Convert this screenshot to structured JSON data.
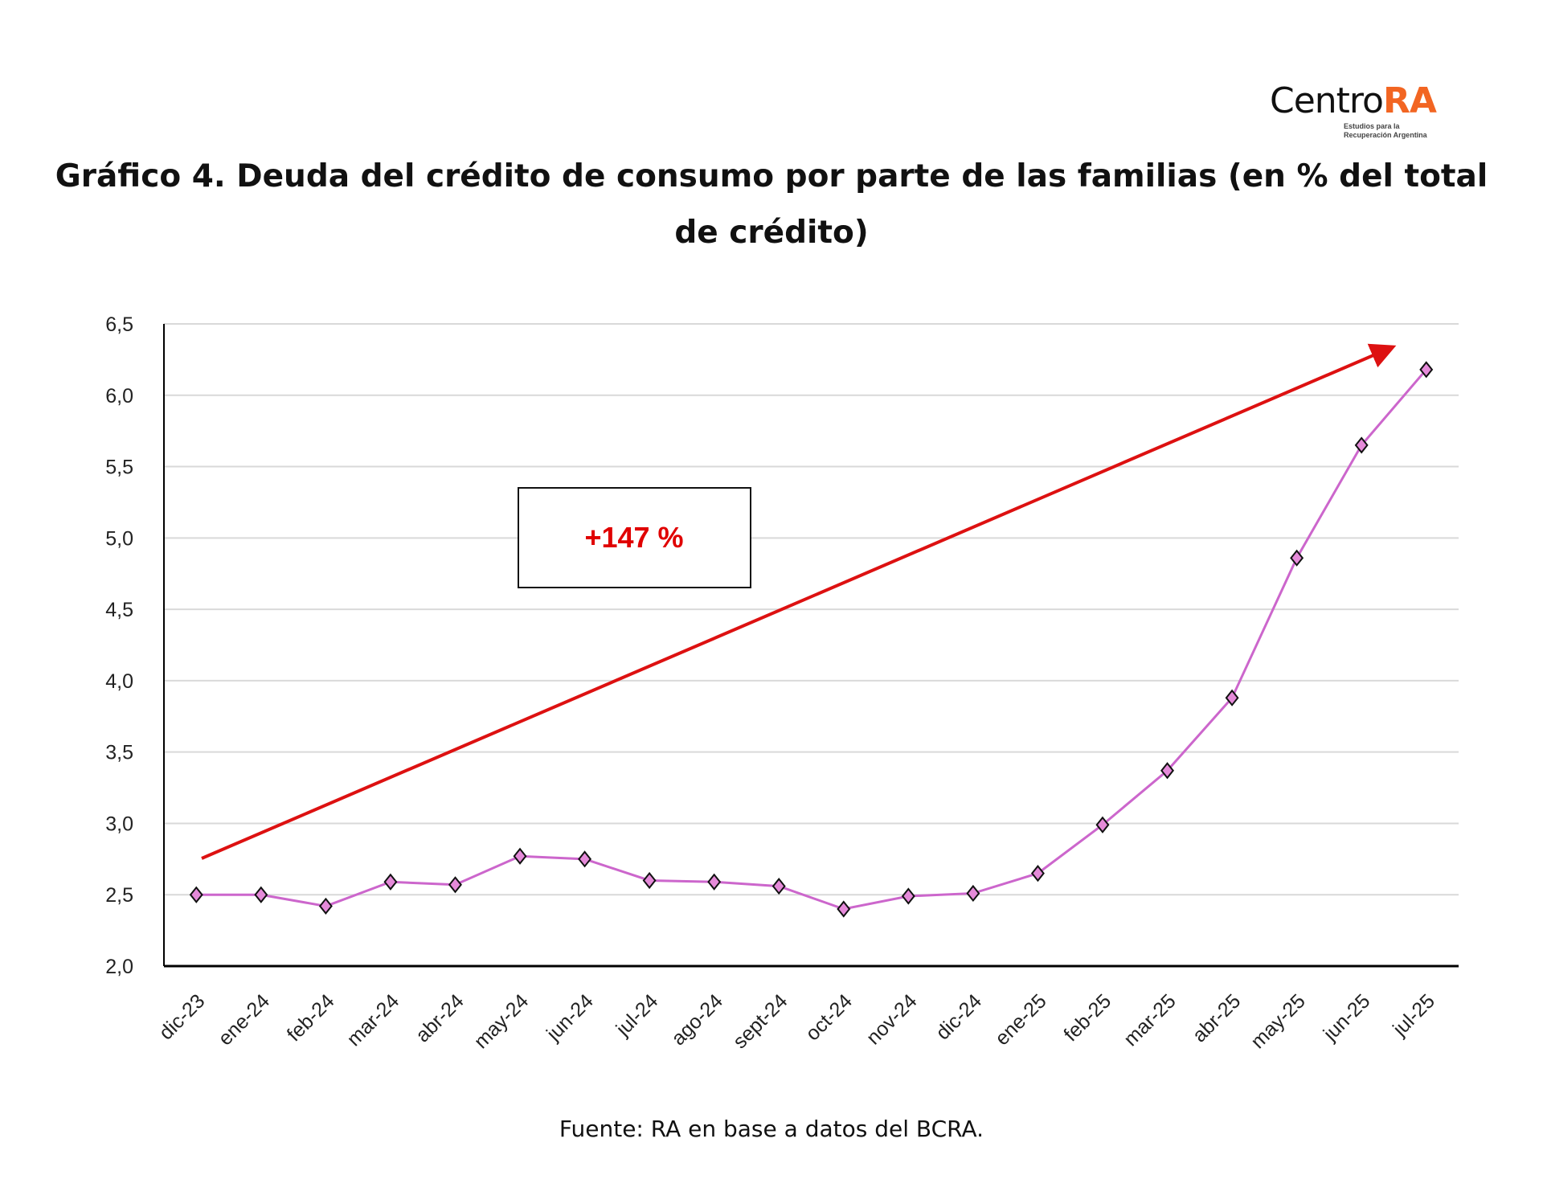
{
  "logo": {
    "text_main": "Centro",
    "text_accent": "RA",
    "subtitle_line1": "Estudios para la",
    "subtitle_line2": "Recuperación Argentina",
    "accent_color": "#f26522"
  },
  "title": "Gráfico 4. Deuda del crédito de consumo por parte de las familias (en % del total de crédito)",
  "source": "Fuente: RA en base a datos del BCRA.",
  "chart_data": {
    "type": "line",
    "title": "Gráfico 4. Deuda del crédito de consumo por parte de las familias (en % del total de crédito)",
    "xlabel": "",
    "ylabel": "",
    "categories": [
      "dic-23",
      "ene-24",
      "feb-24",
      "mar-24",
      "abr-24",
      "may-24",
      "jun-24",
      "jul-24",
      "ago-24",
      "sept-24",
      "oct-24",
      "nov-24",
      "dic-24",
      "ene-25",
      "feb-25",
      "mar-25",
      "abr-25",
      "may-25",
      "jun-25",
      "jul-25"
    ],
    "values": [
      2.5,
      2.5,
      2.42,
      2.59,
      2.57,
      2.77,
      2.75,
      2.6,
      2.59,
      2.56,
      2.4,
      2.49,
      2.51,
      2.65,
      2.99,
      3.37,
      3.88,
      4.86,
      5.65,
      6.18
    ],
    "ylim": [
      2.0,
      6.5
    ],
    "yticks": [
      "2,0",
      "2,5",
      "3,0",
      "3,5",
      "4,0",
      "4,5",
      "5,0",
      "5,5",
      "6,0",
      "6,5"
    ],
    "grid": true,
    "line_color": "#cc66cc",
    "marker": "diamond",
    "marker_color": "#e58ad9",
    "annotation": {
      "text": "+147 %",
      "color": "#e00000"
    },
    "trend_arrow_color": "#dd1111"
  }
}
